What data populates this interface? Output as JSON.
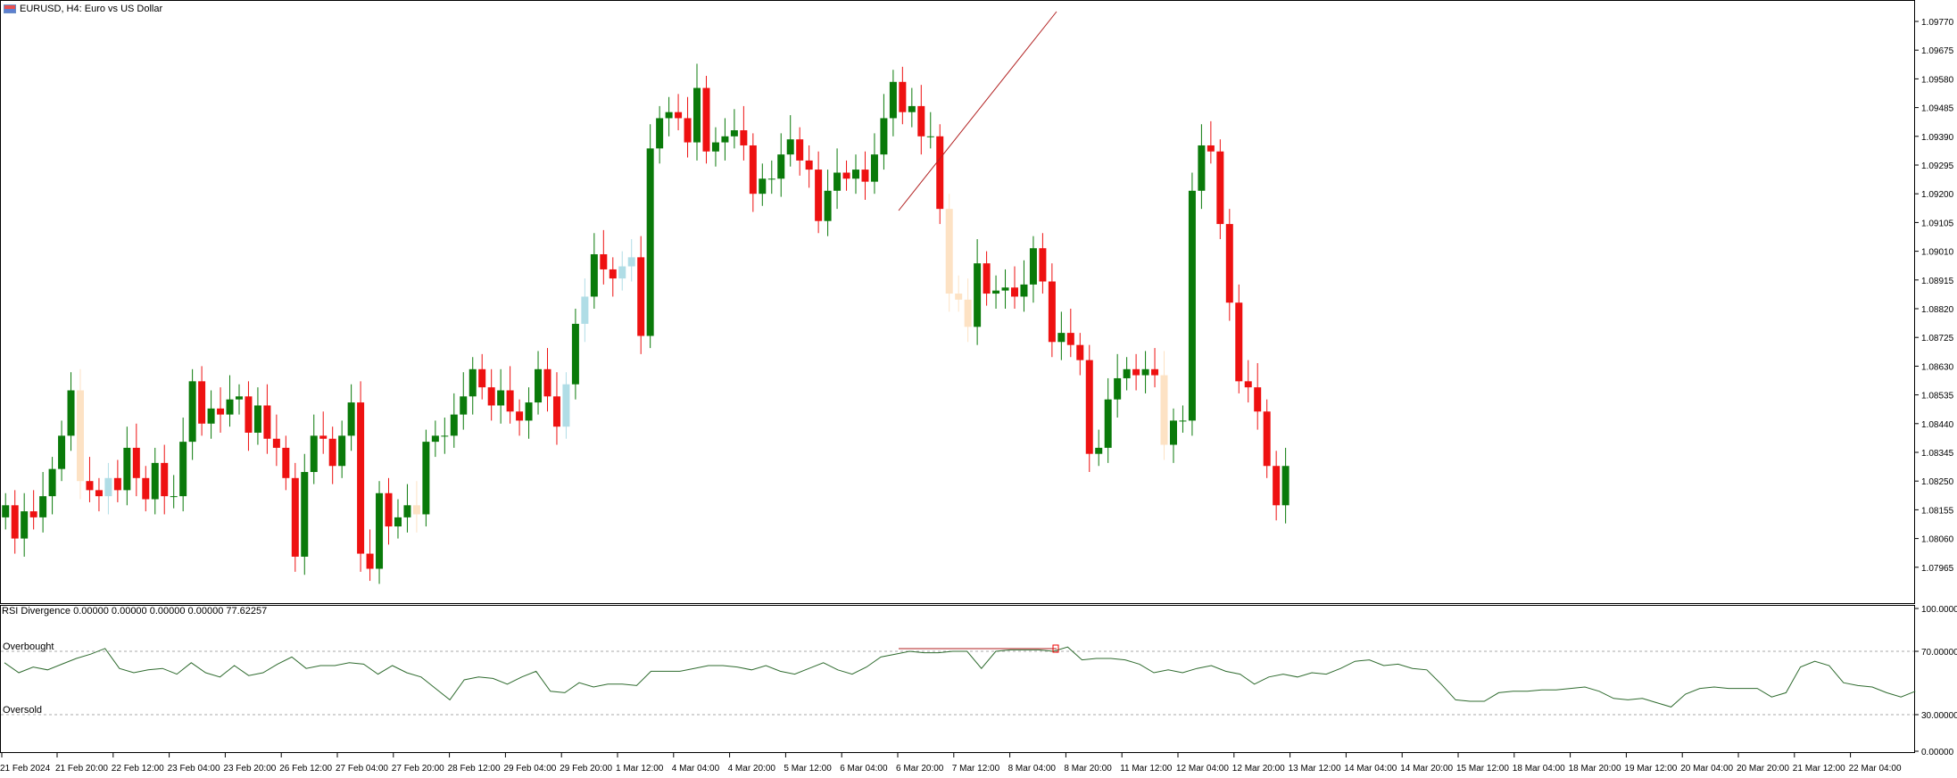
{
  "window": {
    "symbol_title": "EURUSD, H4:  Euro vs US Dollar",
    "flag_icon": "flag-icon"
  },
  "price_axis": {
    "labels": [
      "1.09770",
      "1.09675",
      "1.09580",
      "1.09485",
      "1.09390",
      "1.09295",
      "1.09200",
      "1.09105",
      "1.09010",
      "1.08915",
      "1.08820",
      "1.08725",
      "1.08630",
      "1.08535",
      "1.08440",
      "1.08345",
      "1.08250",
      "1.08155",
      "1.08060",
      "1.07965"
    ]
  },
  "indicator": {
    "label": "RSI Divergence 0.00000 0.00000 0.00000 0.00000 77.62257",
    "overbought_label": "Overbought",
    "oversold_label": "Oversold",
    "axis_labels": [
      "100.00000",
      "70.00000",
      "30.00000",
      "0.00000"
    ]
  },
  "time_axis": {
    "labels": [
      "21 Feb 2024",
      "21 Feb 20:00",
      "22 Feb 12:00",
      "23 Feb 04:00",
      "23 Feb 20:00",
      "26 Feb 12:00",
      "27 Feb 04:00",
      "27 Feb 20:00",
      "28 Feb 12:00",
      "29 Feb 04:00",
      "29 Feb 20:00",
      "1 Mar 12:00",
      "4 Mar 04:00",
      "4 Mar 20:00",
      "5 Mar 12:00",
      "6 Mar 04:00",
      "6 Mar 20:00",
      "7 Mar 12:00",
      "8 Mar 04:00",
      "8 Mar 20:00",
      "11 Mar 12:00",
      "12 Mar 04:00",
      "12 Mar 20:00",
      "13 Mar 12:00",
      "14 Mar 04:00",
      "14 Mar 20:00",
      "15 Mar 12:00",
      "18 Mar 04:00",
      "18 Mar 20:00",
      "19 Mar 12:00",
      "20 Mar 04:00",
      "20 Mar 20:00",
      "21 Mar 12:00",
      "22 Mar 04:00"
    ]
  },
  "colors": {
    "bull": "#0a7a0a",
    "bear": "#ee1111",
    "bull_div": "#b0dde6",
    "bear_div": "#fde2c4",
    "rsi_line": "#2f6b2f",
    "div_line": "#b22222"
  }
}
